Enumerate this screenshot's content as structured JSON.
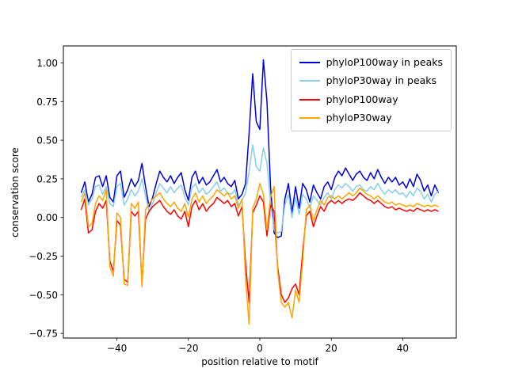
{
  "figure": {
    "background": "#ffffff"
  },
  "chart_data": {
    "type": "line",
    "title": "",
    "xlabel": "position relative to motif",
    "ylabel": "conservation score",
    "grid": false,
    "legend_position": "upper right",
    "xlim": [
      -55,
      55
    ],
    "ylim": [
      -0.78,
      1.11
    ],
    "xticks": [
      -40,
      -20,
      0,
      20,
      40
    ],
    "yticks": [
      -0.75,
      -0.5,
      -0.25,
      0,
      0.25,
      0.5,
      0.75,
      1.0
    ],
    "x": [
      -50,
      -49,
      -48,
      -47,
      -46,
      -45,
      -44,
      -43,
      -42,
      -41,
      -40,
      -39,
      -38,
      -37,
      -36,
      -35,
      -34,
      -33,
      -32,
      -31,
      -30,
      -29,
      -28,
      -27,
      -26,
      -25,
      -24,
      -23,
      -22,
      -21,
      -20,
      -19,
      -18,
      -17,
      -16,
      -15,
      -14,
      -13,
      -12,
      -11,
      -10,
      -9,
      -8,
      -7,
      -6,
      -5,
      -4,
      -3,
      -2,
      -1,
      0,
      1,
      2,
      3,
      4,
      5,
      6,
      7,
      8,
      9,
      10,
      11,
      12,
      13,
      14,
      15,
      16,
      17,
      18,
      19,
      20,
      21,
      22,
      23,
      24,
      25,
      26,
      27,
      28,
      29,
      30,
      31,
      32,
      33,
      34,
      35,
      36,
      37,
      38,
      39,
      40,
      41,
      42,
      43,
      44,
      45,
      46,
      47,
      48,
      49,
      50
    ],
    "series": [
      {
        "name": "phyloP100way in peaks",
        "color": "#0000dd",
        "values": [
          0.16,
          0.23,
          0.1,
          0.15,
          0.26,
          0.27,
          0.2,
          0.27,
          0.13,
          0.1,
          0.27,
          0.3,
          0.13,
          0.18,
          0.25,
          0.2,
          0.24,
          0.35,
          0.2,
          0.07,
          0.13,
          0.22,
          0.3,
          0.26,
          0.23,
          0.27,
          0.22,
          0.26,
          0.29,
          0.18,
          0.11,
          0.26,
          0.3,
          0.22,
          0.26,
          0.21,
          0.23,
          0.27,
          0.31,
          0.23,
          0.26,
          0.22,
          0.2,
          0.24,
          0.12,
          0.15,
          0.22,
          0.55,
          0.93,
          0.62,
          0.57,
          1.02,
          0.75,
          0.2,
          -0.1,
          -0.13,
          -0.12,
          0.12,
          0.22,
          0.03,
          0.2,
          0.06,
          0.22,
          0.18,
          0.1,
          0.21,
          0.16,
          0.12,
          0.2,
          0.23,
          0.18,
          0.26,
          0.3,
          0.27,
          0.32,
          0.28,
          0.24,
          0.28,
          0.3,
          0.26,
          0.24,
          0.29,
          0.25,
          0.31,
          0.26,
          0.22,
          0.26,
          0.23,
          0.26,
          0.21,
          0.23,
          0.19,
          0.25,
          0.2,
          0.28,
          0.24,
          0.17,
          0.21,
          0.14,
          0.21,
          0.16
        ]
      },
      {
        "name": "phyloP30way in peaks",
        "color": "#87ceeb",
        "values": [
          0.13,
          0.18,
          0.08,
          0.12,
          0.2,
          0.21,
          0.15,
          0.2,
          0.09,
          0.07,
          0.2,
          0.22,
          0.08,
          0.12,
          0.18,
          0.14,
          0.17,
          0.25,
          0.14,
          0.04,
          0.09,
          0.16,
          0.22,
          0.19,
          0.16,
          0.2,
          0.16,
          0.19,
          0.21,
          0.13,
          0.08,
          0.19,
          0.22,
          0.16,
          0.19,
          0.15,
          0.17,
          0.2,
          0.23,
          0.17,
          0.19,
          0.16,
          0.15,
          0.18,
          0.08,
          0.11,
          0.16,
          0.3,
          0.47,
          0.33,
          0.3,
          0.45,
          0.35,
          0.1,
          -0.08,
          -0.1,
          -0.09,
          0.08,
          0.15,
          0.0,
          0.13,
          0.02,
          0.15,
          0.12,
          0.06,
          0.14,
          0.11,
          0.08,
          0.13,
          0.16,
          0.12,
          0.18,
          0.21,
          0.19,
          0.22,
          0.2,
          0.17,
          0.2,
          0.21,
          0.18,
          0.17,
          0.2,
          0.18,
          0.22,
          0.18,
          0.15,
          0.18,
          0.16,
          0.18,
          0.15,
          0.16,
          0.13,
          0.17,
          0.14,
          0.19,
          0.17,
          0.12,
          0.15,
          0.1,
          0.15,
          0.17
        ]
      },
      {
        "name": "phyloP100way",
        "color": "#ff0000",
        "values": [
          0.05,
          0.12,
          -0.1,
          -0.08,
          0.04,
          0.09,
          0.06,
          0.11,
          -0.28,
          -0.35,
          -0.02,
          -0.05,
          -0.4,
          -0.42,
          0.04,
          0.01,
          0.04,
          -0.43,
          -0.01,
          0.04,
          0.07,
          0.09,
          0.11,
          0.07,
          0.04,
          0.02,
          0.05,
          0.01,
          -0.01,
          0.04,
          -0.06,
          0.07,
          0.11,
          0.05,
          0.09,
          0.04,
          0.07,
          0.09,
          0.13,
          0.11,
          0.09,
          0.11,
          0.07,
          0.09,
          0.01,
          0.07,
          -0.3,
          -0.55,
          0.03,
          0.08,
          0.14,
          0.1,
          -0.12,
          0.08,
          0.04,
          -0.32,
          -0.5,
          -0.55,
          -0.52,
          -0.46,
          -0.43,
          -0.5,
          -0.22,
          0.01,
          0.04,
          -0.06,
          0.01,
          0.07,
          0.04,
          0.09,
          0.11,
          0.09,
          0.11,
          0.09,
          0.11,
          0.12,
          0.11,
          0.13,
          0.16,
          0.14,
          0.12,
          0.11,
          0.09,
          0.11,
          0.09,
          0.07,
          0.06,
          0.07,
          0.05,
          0.06,
          0.05,
          0.04,
          0.05,
          0.04,
          0.06,
          0.05,
          0.04,
          0.05,
          0.04,
          0.05,
          0.04
        ]
      },
      {
        "name": "phyloP30way",
        "color": "#ffa500",
        "values": [
          0.1,
          0.16,
          -0.06,
          -0.04,
          0.09,
          0.14,
          0.11,
          0.18,
          -0.32,
          -0.38,
          0.03,
          0.0,
          -0.43,
          -0.44,
          0.09,
          0.06,
          0.1,
          -0.45,
          0.05,
          0.09,
          0.12,
          0.14,
          0.16,
          0.12,
          0.09,
          0.07,
          0.1,
          0.06,
          0.04,
          0.09,
          0.0,
          0.12,
          0.16,
          0.1,
          0.14,
          0.09,
          0.12,
          0.14,
          0.18,
          0.16,
          0.14,
          0.16,
          0.12,
          0.14,
          0.06,
          0.12,
          -0.4,
          -0.69,
          0.06,
          0.12,
          0.22,
          0.15,
          -0.08,
          0.13,
          0.2,
          -0.35,
          -0.55,
          -0.58,
          -0.55,
          -0.65,
          -0.47,
          -0.55,
          -0.28,
          0.05,
          0.08,
          -0.02,
          0.05,
          0.11,
          0.08,
          0.13,
          0.14,
          0.12,
          0.14,
          0.12,
          0.14,
          0.16,
          0.14,
          0.16,
          0.19,
          0.17,
          0.15,
          0.14,
          0.12,
          0.14,
          0.12,
          0.1,
          0.09,
          0.1,
          0.08,
          0.09,
          0.08,
          0.07,
          0.08,
          0.07,
          0.09,
          0.08,
          0.07,
          0.08,
          0.07,
          0.08,
          0.07
        ]
      }
    ]
  }
}
